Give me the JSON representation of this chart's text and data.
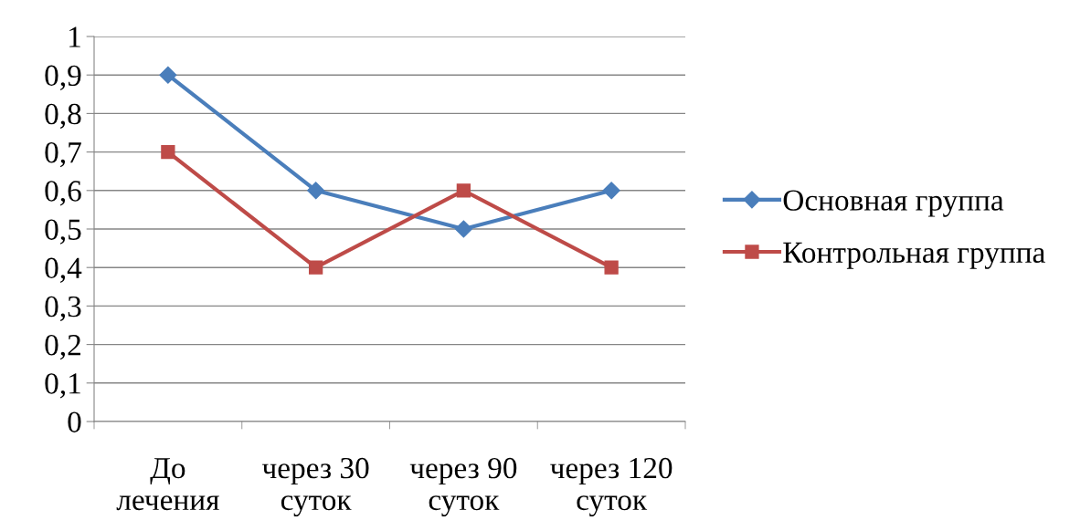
{
  "chart_data": {
    "type": "line",
    "categories": [
      "До\nлечения",
      "через 30\nсуток",
      "через 90\nсуток",
      "через 120\nсуток"
    ],
    "series": [
      {
        "name": "Основная группа",
        "color": "#4a7ebb",
        "values": [
          0.9,
          0.6,
          0.5,
          0.6
        ],
        "marker": "diamond"
      },
      {
        "name": "Контрольная группа",
        "color": "#be4b48",
        "values": [
          0.7,
          0.4,
          0.6,
          0.4
        ],
        "marker": "square"
      }
    ],
    "ylim": [
      0,
      1
    ],
    "yticks": [
      {
        "value": 0,
        "label": "0"
      },
      {
        "value": 0.1,
        "label": "0,1"
      },
      {
        "value": 0.2,
        "label": "0,2"
      },
      {
        "value": 0.3,
        "label": "0,3"
      },
      {
        "value": 0.4,
        "label": "0,4"
      },
      {
        "value": 0.5,
        "label": "0,5"
      },
      {
        "value": 0.6,
        "label": "0,6"
      },
      {
        "value": 0.7,
        "label": "0,7"
      },
      {
        "value": 0.8,
        "label": "0,8"
      },
      {
        "value": 0.9,
        "label": "0,9"
      },
      {
        "value": 1,
        "label": "1"
      }
    ],
    "grid": "y",
    "legend": "right",
    "line_style": "solid"
  }
}
